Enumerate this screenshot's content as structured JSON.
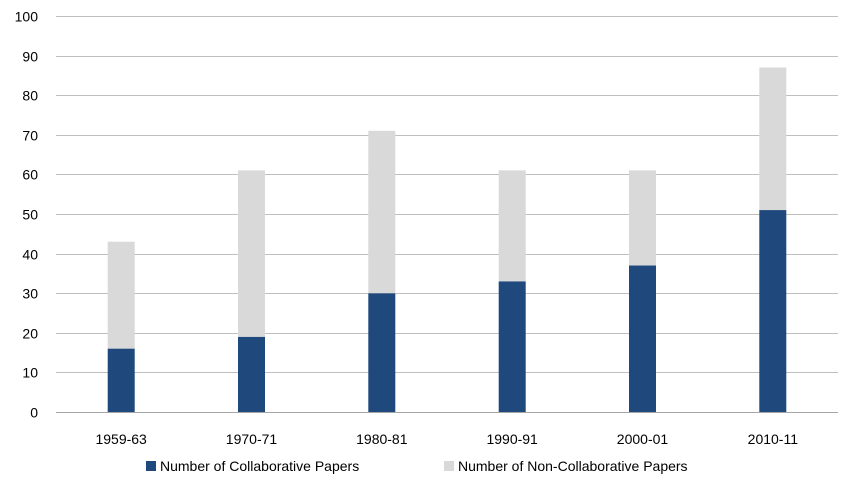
{
  "chart_data": {
    "type": "bar",
    "stacked": true,
    "title": "",
    "xlabel": "",
    "ylabel": "",
    "ylim": [
      0,
      100
    ],
    "yticks": [
      0,
      10,
      20,
      30,
      40,
      50,
      60,
      70,
      80,
      90,
      100
    ],
    "grid": true,
    "legend_position": "bottom",
    "categories": [
      "1959-63",
      "1970-71",
      "1980-81",
      "1990-91",
      "2000-01",
      "2010-11"
    ],
    "series": [
      {
        "name": "Number of Collaborative Papers",
        "color": "#1f497d",
        "values": [
          16,
          19,
          30,
          33,
          37,
          51
        ]
      },
      {
        "name": "Number of Non-Collaborative Papers",
        "color": "#d9d9d9",
        "values": [
          27,
          42,
          41,
          28,
          24,
          36
        ]
      }
    ]
  }
}
